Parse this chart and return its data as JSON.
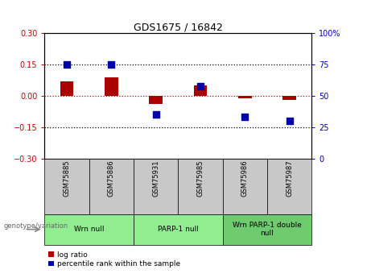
{
  "title": "GDS1675 / 16842",
  "samples": [
    "GSM75885",
    "GSM75886",
    "GSM75931",
    "GSM75985",
    "GSM75986",
    "GSM75987"
  ],
  "log_ratio": [
    0.07,
    0.09,
    -0.04,
    0.05,
    -0.01,
    -0.02
  ],
  "percentile_rank": [
    75,
    75,
    35,
    58,
    33,
    30
  ],
  "groups": [
    {
      "label": "Wrn null",
      "start": 0,
      "end": 1,
      "color": "#90EE90"
    },
    {
      "label": "PARP-1 null",
      "start": 2,
      "end": 3,
      "color": "#90EE90"
    },
    {
      "label": "Wrn PARP-1 double\nnull",
      "start": 4,
      "end": 5,
      "color": "#6ECC6E"
    }
  ],
  "ylim_left": [
    -0.3,
    0.3
  ],
  "ylim_right": [
    0,
    100
  ],
  "yticks_left": [
    -0.3,
    -0.15,
    0,
    0.15,
    0.3
  ],
  "yticks_right": [
    0,
    25,
    50,
    75,
    100
  ],
  "ytick_labels_right": [
    "0",
    "25",
    "50",
    "75",
    "100%"
  ],
  "hlines": [
    0.15,
    0.0,
    -0.15
  ],
  "bar_color": "#AA0000",
  "dot_color": "#0000AA",
  "bar_width": 0.3,
  "dot_size": 40,
  "legend_items": [
    {
      "label": "log ratio",
      "color": "#AA0000"
    },
    {
      "label": "percentile rank within the sample",
      "color": "#0000AA"
    }
  ],
  "left_tick_color": "#CC0000",
  "right_tick_color": "#0000CC",
  "background_color": "#ffffff",
  "zero_line_color": "#CC0000",
  "sample_box_color": "#C8C8C8"
}
